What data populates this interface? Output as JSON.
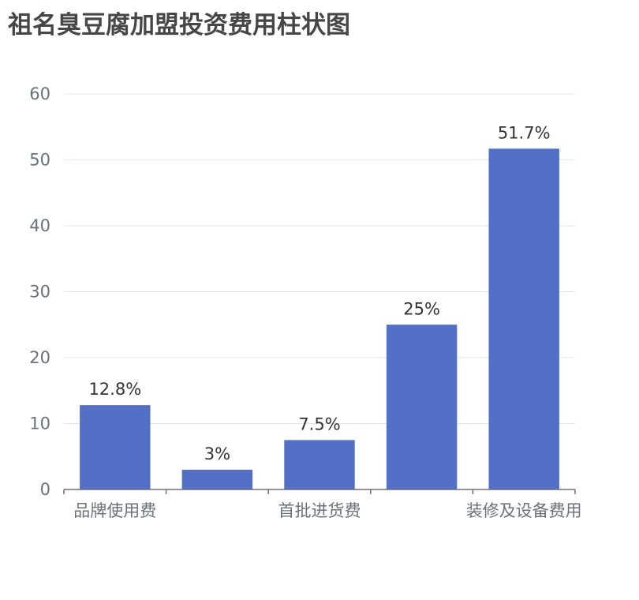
{
  "chart_data": {
    "type": "bar",
    "title": "祖名臭豆腐加盟投资费用柱状图",
    "categories": [
      "品牌使用费",
      "",
      "首批进货费",
      "",
      "装修及设备费用"
    ],
    "values": [
      12.8,
      3,
      7.5,
      25,
      51.7
    ],
    "data_labels": [
      "12.8%",
      "3%",
      "7.5%",
      "25%",
      "51.7%"
    ],
    "y_ticks": [
      "0",
      "10",
      "20",
      "30",
      "40",
      "50",
      "60"
    ],
    "ylim": [
      0,
      60
    ],
    "grid": true,
    "legend": "none",
    "colors": {
      "bar": "#5470c6",
      "grid": "#e0e6f1",
      "axis": "#6e7079"
    }
  }
}
